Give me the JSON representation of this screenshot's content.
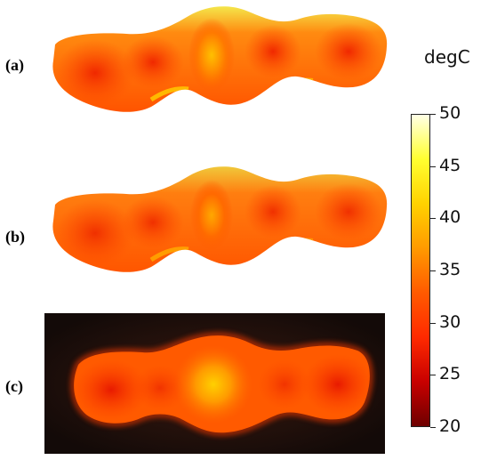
{
  "panels": {
    "a_label": "(a)",
    "b_label": "(b)",
    "c_label": "(c)"
  },
  "colorbar": {
    "unit": "degC",
    "min": 20,
    "max": 50,
    "ticks": [
      "50",
      "45",
      "40",
      "35",
      "30",
      "25",
      "20"
    ],
    "colormap": "heat",
    "colors": [
      "#6e0000",
      "#c80000",
      "#ff2a00",
      "#ff5a00",
      "#ff9a00",
      "#ffd200",
      "#ffff30",
      "#ffffe6"
    ]
  }
}
